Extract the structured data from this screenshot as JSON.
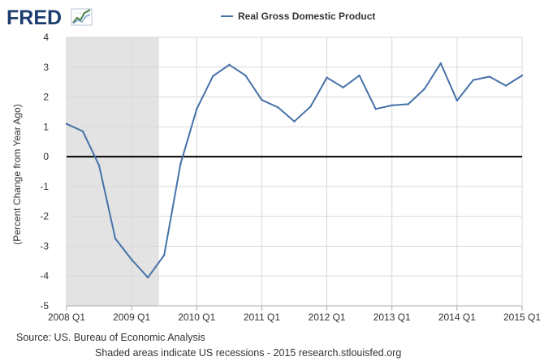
{
  "logo": {
    "text": "FRED",
    "icon": "trend-chart-icon"
  },
  "colors": {
    "series": "#4572a7",
    "recession": "#e3e3e3",
    "grid": "#d8d8d8",
    "zero_line": "#000000"
  },
  "footer": {
    "source": "Source: US. Bureau of Economic Analysis",
    "recession_note": "Shaded areas indicate US recessions - 2015 research.stlouisfed.org"
  },
  "chart_data": {
    "type": "line",
    "title": "",
    "xlabel": "",
    "ylabel": "(Percent Change from Year Ago)",
    "legend": [
      "Real Gross Domestic Product"
    ],
    "legend_position": "top-center",
    "grid": true,
    "ylim": [
      -5,
      4
    ],
    "yticks": [
      -5,
      -4,
      -3,
      -2,
      -1,
      0,
      1,
      2,
      3,
      4
    ],
    "ytick_labels": [
      "-5",
      "-4",
      "-3",
      "-2",
      "-1",
      "0",
      "1",
      "2",
      "3",
      "4"
    ],
    "xlim": [
      2008.0,
      2015.0
    ],
    "xticks": [
      2008,
      2009,
      2010,
      2011,
      2012,
      2013,
      2014,
      2015
    ],
    "xtick_labels": [
      "2008 Q1",
      "2009 Q1",
      "2010 Q1",
      "2011 Q1",
      "2012 Q1",
      "2013 Q1",
      "2014 Q1",
      "2015 Q1"
    ],
    "recession_shading": [
      [
        2008.0,
        2009.42
      ]
    ],
    "series": [
      {
        "name": "Real Gross Domestic Product",
        "x": [
          2008.0,
          2008.25,
          2008.5,
          2008.75,
          2009.0,
          2009.25,
          2009.5,
          2009.75,
          2010.0,
          2010.25,
          2010.5,
          2010.75,
          2011.0,
          2011.25,
          2011.5,
          2011.75,
          2012.0,
          2012.25,
          2012.5,
          2012.75,
          2013.0,
          2013.25,
          2013.5,
          2013.75,
          2014.0,
          2014.25,
          2014.5,
          2014.75,
          2015.0
        ],
        "values": [
          1.1,
          0.85,
          -0.3,
          -2.75,
          -3.45,
          -4.05,
          -3.3,
          -0.25,
          1.6,
          2.7,
          3.08,
          2.72,
          1.9,
          1.65,
          1.18,
          1.68,
          2.65,
          2.32,
          2.72,
          1.6,
          1.72,
          1.76,
          2.27,
          3.13,
          1.88,
          2.57,
          2.68,
          2.38,
          2.72
        ]
      }
    ]
  }
}
